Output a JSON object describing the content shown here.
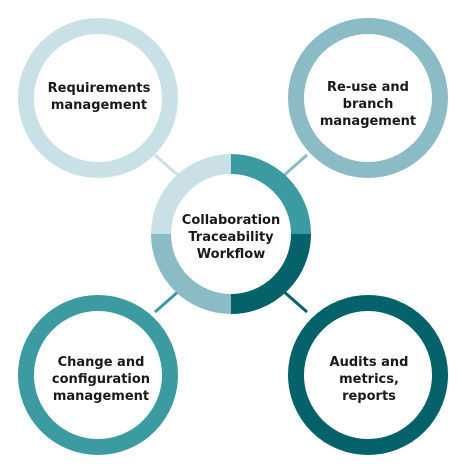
{
  "center": {
    "label": "Collaboration\nTraceability\nWorkflow"
  },
  "nodes": {
    "requirements": {
      "label": "Requirements\nmanagement",
      "color": "#c9e1e6"
    },
    "reuse": {
      "label": "Re-use and\nbranch\nmanagement",
      "color": "#8bbcc6"
    },
    "change": {
      "label": "Change and\nconfiguration\nmanagement",
      "color": "#3c9aa1"
    },
    "audits": {
      "label": "Audits and\nmetrics,\nreports",
      "color": "#05626a"
    }
  }
}
